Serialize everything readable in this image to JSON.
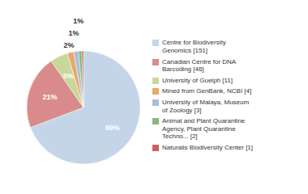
{
  "chart_data": {
    "type": "pie",
    "categories": [
      "Centre for Biodiversity\nGenomics [151]",
      "Canadian Centre for DNA\nBarcoding [46]",
      "University of Guelph [11]",
      "Mined from GenBank, NCBI [4]",
      "University of Malaya, Museum\nof Zoology [3]",
      "Animal and Plant Quarantine\nAgency, Plant Quarantine\nTechno... [2]",
      "Naturalis Biodiversity Center [1]"
    ],
    "values": [
      69.27,
      21.1,
      5.05,
      1.83,
      1.38,
      0.92,
      0.46
    ],
    "value_labels": [
      "69%",
      "21%",
      "5%",
      "2%",
      "1%",
      "1%",
      null
    ],
    "colors": [
      "#c5d5e8",
      "#d98b8b",
      "#c8d89a",
      "#e8a96a",
      "#a8c0d8",
      "#88b878",
      "#cc6060"
    ],
    "data_labels": true,
    "legend": "right"
  }
}
